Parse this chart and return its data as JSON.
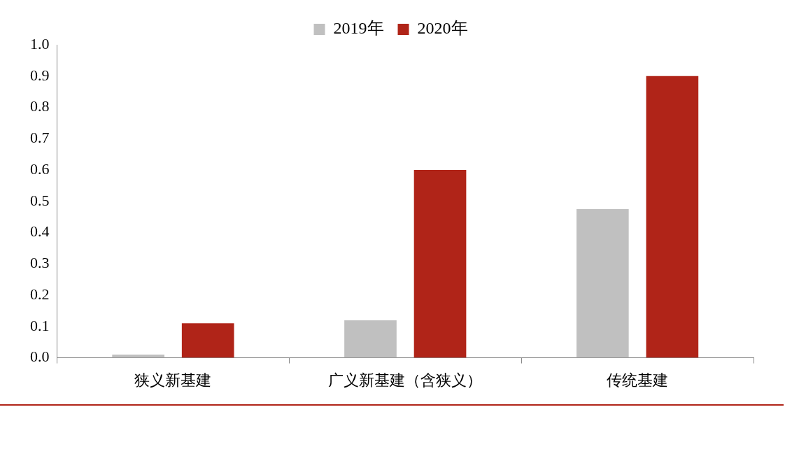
{
  "chart_data": {
    "type": "bar",
    "categories": [
      "狭义新基建",
      "广义新基建（含狭义）",
      "传统基建"
    ],
    "series": [
      {
        "name": "2019年",
        "color": "#c0c0c0",
        "values": [
          0.01,
          0.12,
          0.475
        ]
      },
      {
        "name": "2020年",
        "color": "#b02418",
        "values": [
          0.11,
          0.6,
          0.9
        ]
      }
    ],
    "ylim": [
      0,
      1
    ],
    "yticks": [
      {
        "value": 0,
        "label": "0.0"
      },
      {
        "value": 0.1,
        "label": "0.1"
      },
      {
        "value": 0.2,
        "label": "0.2"
      },
      {
        "value": 0.3,
        "label": "0.3"
      },
      {
        "value": 0.4,
        "label": "0.4"
      },
      {
        "value": 0.5,
        "label": "0.5"
      },
      {
        "value": 0.6,
        "label": "0.6"
      },
      {
        "value": 0.7,
        "label": "0.7"
      },
      {
        "value": 0.8,
        "label": "0.8"
      },
      {
        "value": 0.9,
        "label": "0.9"
      },
      {
        "value": 1,
        "label": "1.0"
      }
    ],
    "grid": false,
    "legend": "top"
  }
}
